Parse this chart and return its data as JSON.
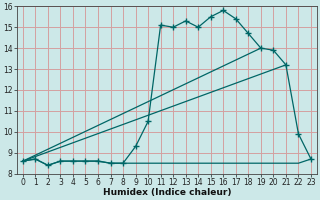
{
  "xlabel": "Humidex (Indice chaleur)",
  "bg_color": "#cce8e8",
  "grid_color": "#d4a0a0",
  "line_color": "#006666",
  "xlim": [
    -0.5,
    23.5
  ],
  "ylim": [
    8.0,
    16.0
  ],
  "xticks": [
    0,
    1,
    2,
    3,
    4,
    5,
    6,
    7,
    8,
    9,
    10,
    11,
    12,
    13,
    14,
    15,
    16,
    17,
    18,
    19,
    20,
    21,
    22,
    23
  ],
  "yticks": [
    8,
    9,
    10,
    11,
    12,
    13,
    14,
    15,
    16
  ],
  "curve_x": [
    0,
    1,
    2,
    3,
    4,
    5,
    6,
    7,
    8,
    9,
    10,
    11,
    12,
    13,
    14,
    15,
    16,
    17,
    18,
    19,
    20,
    21,
    22,
    23
  ],
  "curve_y": [
    8.6,
    8.7,
    8.4,
    8.6,
    8.6,
    8.6,
    8.6,
    8.5,
    8.5,
    9.3,
    10.5,
    15.1,
    15.0,
    15.3,
    15.0,
    15.5,
    15.8,
    15.4,
    14.7,
    14.0,
    13.9,
    13.2,
    9.9,
    8.7
  ],
  "flat_x": [
    0,
    1,
    2,
    3,
    4,
    5,
    6,
    7,
    8,
    9,
    10,
    11,
    12,
    13,
    14,
    15,
    16,
    17,
    18,
    19,
    20,
    21,
    22,
    23
  ],
  "flat_y": [
    8.6,
    8.7,
    8.4,
    8.6,
    8.6,
    8.6,
    8.6,
    8.5,
    8.5,
    8.5,
    8.5,
    8.5,
    8.5,
    8.5,
    8.5,
    8.5,
    8.5,
    8.5,
    8.5,
    8.5,
    8.5,
    8.5,
    8.5,
    8.7
  ],
  "trend1_x": [
    0,
    19
  ],
  "trend1_y": [
    8.6,
    14.0
  ],
  "trend2_x": [
    0,
    21
  ],
  "trend2_y": [
    8.6,
    13.2
  ],
  "xlabel_fontsize": 6.5,
  "tick_fontsize": 5.5
}
